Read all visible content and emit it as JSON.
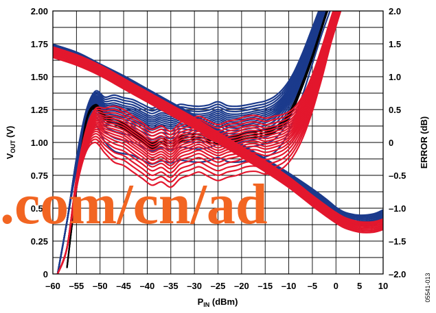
{
  "chart_data": {
    "type": "line",
    "xlabel": {
      "main": "P",
      "sub": "IN",
      "rest": " (dBm)"
    },
    "ylabel_left": {
      "main": "V",
      "sub": "OUT",
      "rest": " (V)"
    },
    "ylabel_right": "ERROR (dB)",
    "x_ticks": [
      "–60",
      "–55",
      "–50",
      "–45",
      "–40",
      "–35",
      "–30",
      "–25",
      "–20",
      "–15",
      "–10",
      "–5",
      "0",
      "5",
      "10"
    ],
    "y_left_ticks": [
      "0",
      "0.25",
      "0.50",
      "0.75",
      "1.00",
      "1.25",
      "1.50",
      "1.75",
      "2.00"
    ],
    "y_right_ticks": [
      "–2.0",
      "–1.5",
      "–1.0",
      "–0.5",
      "0",
      "0.5",
      "1.0",
      "1.5",
      "2.0"
    ],
    "xlim": [
      -60,
      10
    ],
    "ylim_left": [
      0,
      2
    ],
    "ylim_right": [
      -2,
      2
    ],
    "grid": true,
    "figure_id": "05541-013",
    "watermark": ".com/cn/ad",
    "colors": {
      "group_a": "#1b3a8c",
      "group_b": "#e3172d",
      "reference": "#000000",
      "watermark": "#f26522"
    },
    "series_groups": [
      {
        "color": "group_a",
        "axis": "right",
        "kind": "error",
        "x": [
          -59,
          -57,
          -55,
          -53,
          -51,
          -49,
          -47,
          -45,
          -43,
          -41,
          -39,
          -37,
          -35,
          -33,
          -31,
          -29,
          -27,
          -25,
          -23,
          -21,
          -19,
          -17,
          -15,
          -13,
          -11,
          -9,
          -7,
          -5,
          -3,
          -1
        ],
        "y": [
          -2.0,
          -1.2,
          -0.3,
          0.35,
          0.6,
          0.45,
          0.42,
          0.38,
          0.35,
          0.28,
          0.22,
          0.27,
          0.24,
          0.28,
          0.26,
          0.25,
          0.27,
          0.32,
          0.26,
          0.25,
          0.27,
          0.3,
          0.33,
          0.4,
          0.55,
          0.8,
          1.15,
          1.55,
          1.95,
          2.3
        ],
        "offsets": [
          -0.55,
          -0.35,
          -0.25,
          -0.18,
          -0.12,
          -0.07,
          -0.03,
          0.0,
          0.03,
          0.06,
          0.09,
          0.12,
          0.15,
          0.18,
          0.22,
          0.26,
          0.3
        ]
      },
      {
        "color": "group_b",
        "axis": "right",
        "kind": "error",
        "x": [
          -59,
          -57,
          -55,
          -53,
          -51,
          -49,
          -47,
          -45,
          -43,
          -41,
          -39,
          -37,
          -35,
          -33,
          -31,
          -29,
          -27,
          -25,
          -23,
          -21,
          -19,
          -17,
          -15,
          -13,
          -11,
          -9,
          -7,
          -5,
          -3,
          -1,
          1
        ],
        "y": [
          -2.0,
          -1.6,
          -0.6,
          0.05,
          0.3,
          0.24,
          0.2,
          0.15,
          0.05,
          -0.05,
          -0.15,
          -0.1,
          -0.18,
          -0.05,
          0.0,
          0.05,
          -0.02,
          -0.08,
          -0.03,
          0.0,
          0.05,
          0.06,
          0.02,
          0.05,
          0.1,
          0.22,
          0.45,
          0.8,
          1.25,
          1.75,
          2.2
        ],
        "offsets": [
          -0.5,
          -0.42,
          -0.35,
          -0.28,
          -0.22,
          -0.17,
          -0.12,
          -0.08,
          -0.04,
          0.0,
          0.04,
          0.08,
          0.12,
          0.16,
          0.2,
          0.25,
          0.3,
          0.35
        ]
      },
      {
        "color": "reference",
        "axis": "right",
        "kind": "error",
        "x": [
          -57,
          -55,
          -53,
          -51,
          -49,
          -47,
          -45,
          -43,
          -41,
          -39,
          -37,
          -35,
          -33,
          -31,
          -29,
          -27,
          -25,
          -23,
          -21,
          -19,
          -17,
          -15,
          -13,
          -11,
          -9,
          -7,
          -5,
          -3,
          -1
        ],
        "y": [
          -1.9,
          -0.7,
          0.3,
          0.55,
          0.38,
          0.32,
          0.25,
          0.15,
          0.05,
          -0.05,
          0.02,
          -0.02,
          0.05,
          0.08,
          0.08,
          0.04,
          0.02,
          0.05,
          0.06,
          0.1,
          0.12,
          0.15,
          0.2,
          0.3,
          0.55,
          0.9,
          1.3,
          1.75,
          2.2
        ],
        "offsets": [
          -0.04,
          0.0,
          0.04
        ]
      },
      {
        "color": "group_a",
        "axis": "left",
        "kind": "transfer",
        "x": [
          -61,
          -55,
          -50,
          -45,
          -40,
          -35,
          -30,
          -25,
          -20,
          -15,
          -10,
          -5,
          -2,
          0,
          2,
          5,
          8,
          10
        ],
        "y": [
          1.73,
          1.66,
          1.57,
          1.48,
          1.38,
          1.28,
          1.18,
          1.07,
          0.96,
          0.85,
          0.74,
          0.62,
          0.54,
          0.48,
          0.44,
          0.42,
          0.43,
          0.46
        ],
        "offsets": [
          -0.05,
          -0.035,
          -0.02,
          -0.005,
          0.01,
          0.025
        ]
      },
      {
        "color": "group_b",
        "axis": "left",
        "kind": "transfer",
        "x": [
          -61,
          -55,
          -50,
          -45,
          -40,
          -35,
          -30,
          -25,
          -20,
          -15,
          -10,
          -5,
          -2,
          0,
          2,
          5,
          8,
          10
        ],
        "y": [
          1.7,
          1.63,
          1.55,
          1.45,
          1.35,
          1.25,
          1.15,
          1.04,
          0.93,
          0.82,
          0.7,
          0.56,
          0.48,
          0.43,
          0.39,
          0.36,
          0.36,
          0.38
        ],
        "offsets": [
          -0.04,
          -0.025,
          -0.01,
          0.005,
          0.02,
          0.035
        ]
      }
    ]
  }
}
